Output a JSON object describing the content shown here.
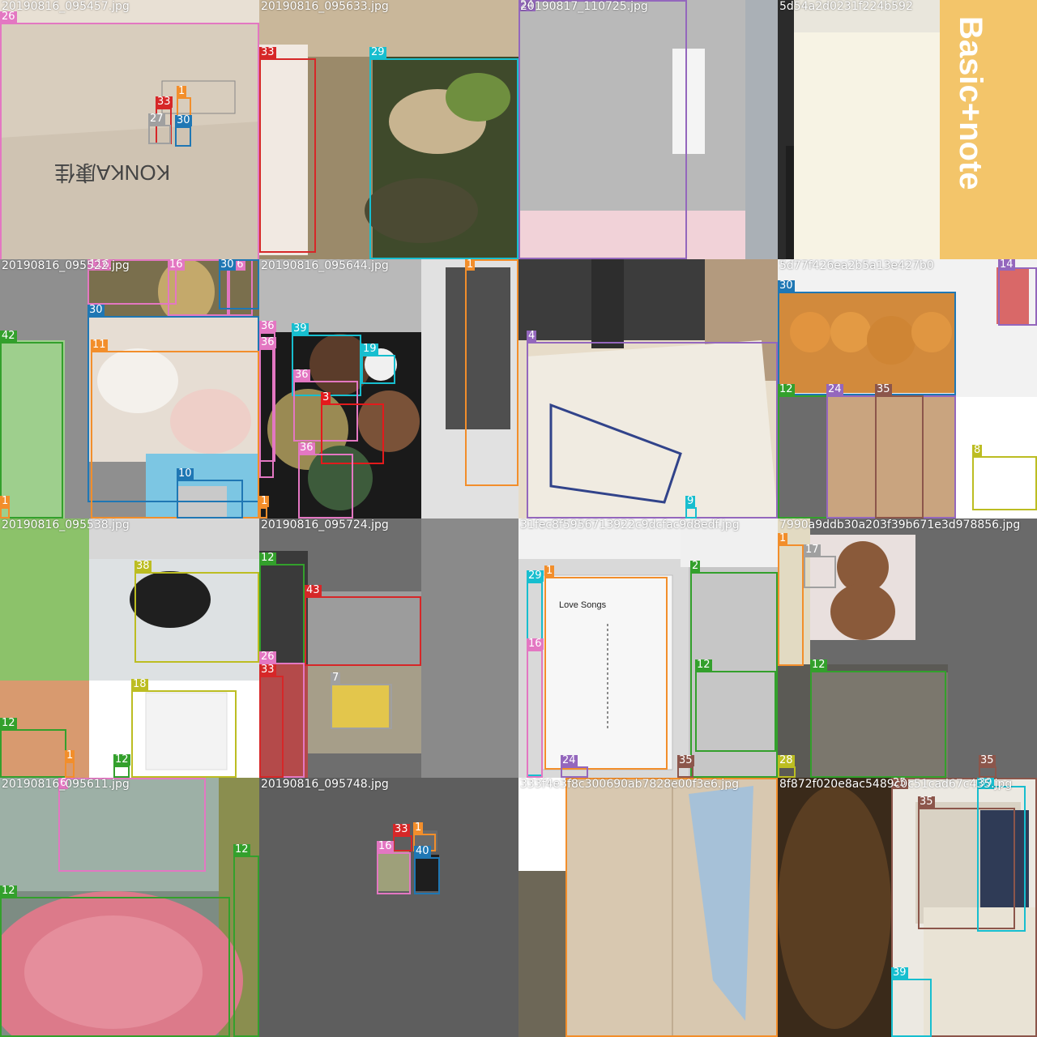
{
  "colors": {
    "1": "#f28e2b",
    "2": "#33a02c",
    "3": "#e31a1c",
    "4": "#9467bd",
    "6": "#e377c2",
    "7": "#a0a0a0",
    "8": "#bcbd22",
    "9": "#17becf",
    "10": "#1f77b4",
    "11": "#f28e2b",
    "12": "#33a02c",
    "14": "#9467bd",
    "16": "#e377c2",
    "17": "#a0a0a0",
    "18": "#bcbd22",
    "19": "#17becf",
    "24": "#9467bd",
    "25": "#8c564b",
    "26": "#e377c2",
    "27": "#a0a0a0",
    "28": "#bcbd22",
    "29": "#17becf",
    "30": "#1f77b4",
    "33": "#d62728",
    "35": "#8c564b",
    "36": "#e377c2",
    "38": "#bcbd22",
    "39": "#17becf",
    "40": "#1f77b4",
    "42": "#33a02c",
    "43": "#d62728",
    "116": "#e377c2"
  },
  "tiles": [
    {
      "filename": "20190816_095457.jpg",
      "scene": "cardboard-box",
      "labels": [
        "26",
        "33",
        "1",
        "27",
        "30"
      ]
    },
    {
      "filename": "20190816_095633.jpg",
      "scene": "food-waste",
      "labels": [
        "33",
        "29"
      ]
    },
    {
      "filename": "20190817_110725.jpg",
      "scene": "grey-notebook",
      "labels": [
        "24"
      ]
    },
    {
      "filename": "5d54a2d0231f224b592",
      "scene": "basic-note-book",
      "labels": []
    },
    {
      "filename": "20190816_095522.jpg",
      "scene": "eggshells",
      "labels": [
        "116",
        "16",
        "30",
        "16",
        "30",
        "42",
        "11",
        "10",
        "1"
      ]
    },
    {
      "filename": "20190816_095644.jpg",
      "scene": "food-bowls",
      "labels": [
        "1",
        "36",
        "36",
        "39",
        "19",
        "36",
        "3",
        "36",
        "1"
      ]
    },
    {
      "filename": "",
      "scene": "marble-bag",
      "labels": [
        "4",
        "9"
      ]
    },
    {
      "filename": "5d77f426ea2b5a13e427b0",
      "scene": "eggs-fork",
      "labels": [
        "30",
        "14",
        "12",
        "24",
        "35",
        "8"
      ]
    },
    {
      "filename": "20190816_095538.jpg",
      "scene": "pot-mosaic",
      "labels": [
        "38",
        "18",
        "12",
        "1",
        "12"
      ]
    },
    {
      "filename": "20190816_095724.jpg",
      "scene": "grey-mosaic",
      "labels": [
        "12",
        "43",
        "26",
        "33",
        "7"
      ]
    },
    {
      "filename": "31fec8f5956713922c9dcfac9d8edf.jpg",
      "scene": "love-songs-notebook",
      "labels": [
        "1",
        "29",
        "16",
        "2",
        "12",
        "24",
        "35"
      ]
    },
    {
      "filename": "7990a9ddb30a203f39b671e3d978856.jpg",
      "scene": "teddy-bear",
      "labels": [
        "1",
        "17",
        "12",
        "28",
        "35"
      ]
    },
    {
      "filename": "20190816_095611.jpg",
      "scene": "pink-basin",
      "labels": [
        "6",
        "12"
      ]
    },
    {
      "filename": "20190816_095748.jpg",
      "scene": "grey-small-mosaic",
      "labels": [
        "33",
        "1",
        "16",
        "40"
      ]
    },
    {
      "filename": "333f4e3f8c300690ab7828e00f3e6.jpg",
      "scene": "knife-wood",
      "labels": []
    },
    {
      "filename": "8f872f020e8ac5489c0c51cad67c435.jpg",
      "scene": "tea-utensils",
      "labels": [
        "25",
        "35",
        "39"
      ]
    }
  ]
}
